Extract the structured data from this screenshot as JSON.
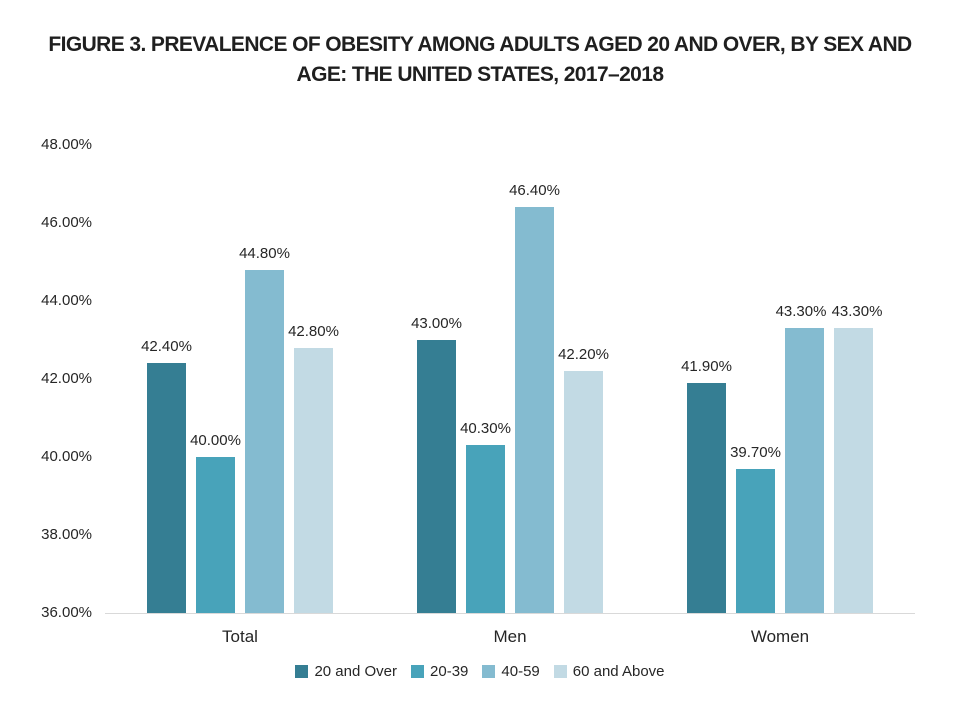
{
  "chart": {
    "title_lines": [
      "FIGURE 3. PREVALENCE OF OBESITY AMONG ADULTS AGED 20 AND OVER, BY SEX AND",
      "AGE: THE UNITED STATES, 2017–2018"
    ]
  },
  "colors": {
    "axis_line": "#d9d9d9",
    "text": "#262626",
    "title_text": "#1f1f1f",
    "background": "#ffffff"
  },
  "chart_data": {
    "type": "bar",
    "title": "FIGURE 3. PREVALENCE OF OBESITY AMONG ADULTS AGED 20 AND OVER, BY SEX AND AGE: THE UNITED STATES, 2017–2018",
    "categories": [
      "Total",
      "Men",
      "Women"
    ],
    "series": [
      {
        "name": "20 and Over",
        "color": "#357e93",
        "values": [
          42.4,
          43.0,
          41.9
        ],
        "labels": [
          "42.40%",
          "43.00%",
          "41.90%"
        ]
      },
      {
        "name": "20-39",
        "color": "#48a3ba",
        "values": [
          40.0,
          40.3,
          39.7
        ],
        "labels": [
          "40.00%",
          "40.30%",
          "39.70%"
        ]
      },
      {
        "name": "40-59",
        "color": "#84bbd0",
        "values": [
          44.8,
          46.4,
          43.3
        ],
        "labels": [
          "44.80%",
          "46.40%",
          "43.30%"
        ]
      },
      {
        "name": "60 and Above",
        "color": "#c2dae4",
        "values": [
          42.8,
          42.2,
          43.3
        ],
        "labels": [
          "42.80%",
          "42.20%",
          "43.30%"
        ]
      }
    ],
    "xlabel": "",
    "ylabel": "",
    "ylim": [
      36,
      48
    ],
    "ytick_values": [
      36,
      38,
      40,
      42,
      44,
      46,
      48
    ],
    "ytick_labels": [
      "36.00%",
      "38.00%",
      "40.00%",
      "42.00%",
      "44.00%",
      "46.00%",
      "48.00%"
    ],
    "grid": false,
    "legend_position": "bottom",
    "data_labels": true
  }
}
